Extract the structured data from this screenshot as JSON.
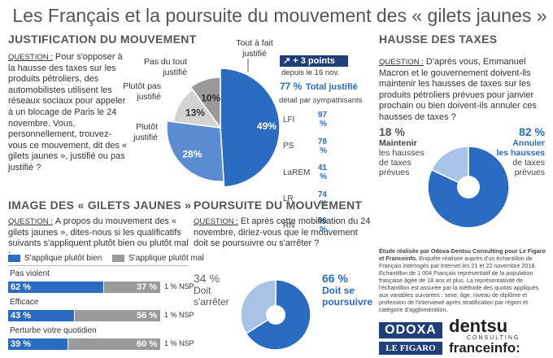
{
  "title": "Les Français et la poursuite du mouvement des « gilets jaunes »",
  "justification": {
    "heading": "JUSTIFICATION DU MOUVEMENT",
    "question_label": "QUESTION :",
    "question_text": "Pour s'opposer à la hausse des taxes sur les produits pétroliers, des automobilistes utilisent les réseaux sociaux pour appeler à un blocage de Paris le 24 novembre. Vous, personnellement, trouvez-vous ce mouvement, dit des « gilets jaunes », justifié ou pas justifié ?",
    "slice_labels": {
      "tout_a_fait": "Tout à fait justifié",
      "plutot": "Plutôt justifié",
      "plutot_pas": "Plutôt pas justifié",
      "pas_du_tout": "Pas du tout justifié"
    },
    "trend": "+ 3 points",
    "trend_since": "depuis le 16 nov.",
    "total_value": "77 %",
    "total_label": "Total justifié",
    "detail_title": "détail par sympathisants",
    "sympathisants": [
      {
        "party": "LFI",
        "value": "97 %"
      },
      {
        "party": "PS",
        "value": "78 %"
      },
      {
        "party": "LaREM",
        "value": "41 %"
      },
      {
        "party": "LR",
        "value": "74 %"
      },
      {
        "party": "RN",
        "value": "86 %"
      }
    ]
  },
  "taxes": {
    "heading": "HAUSSE DES TAXES",
    "question_label": "QUESTION :",
    "question_text": "D'après vous, Emmanuel Macron et le gouvernement doivent-ils maintenir les hausses de taxes sur les produits pétroliers prévues pour janvier prochain ou bien doivent-ils annuler ces hausses de taxes ?",
    "left_value": "18 %",
    "left_l1": "Maintenir",
    "left_l2": "les hausses",
    "left_l3": "de taxes",
    "left_l4": "prévues",
    "right_value": "82 %",
    "right_l1": "Annuler",
    "right_l2": "les hausses",
    "right_l3": "de taxes",
    "right_l4": "prévues"
  },
  "image": {
    "heading": "IMAGE DES « GILETS JAUNES »",
    "question_label": "QUESTION :",
    "question_text": "A propos du mouvement des « gilets jaunes », dites-nous si les qualificatifs suivants s'appliquent plutôt bien ou plutôt mal :",
    "legend_bien": "S'applique plutôt bien",
    "legend_mal": "S'applique plutôt mal"
  },
  "poursuite": {
    "heading": "POURSUITE DU MOUVEMENT",
    "question_label": "QUESTION :",
    "question_text": "Et après cette mobilisation du 24 novembre, diriez-vous que le mouvement doit se poursuivre ou s'arrêter ?",
    "left_value": "34 %",
    "left_l1": "Doit",
    "left_l2": "s'arrêter",
    "right_value": "66 %",
    "right_l1": "Doit se",
    "right_l2": "poursuivre"
  },
  "methodology": {
    "lead": "Étude réalisée par Odoxa-Dentsu Consulting pour Le Figaro et Franceinfo.",
    "body": "Enquête réalisée auprès d'un échantillon de Français interrogés par Internet les 21 et 22 novembre 2018. Echantillon de 1 004 Français représentatif de la population française âgée de 18 ans et plus. La représentativité de l'échantillon est assurée par la méthode des quotas appliqués aux variables suivantes : sexe, âge, niveau de diplôme et profession de l'interviewé après stratification par région et catégorie d'agglomération."
  },
  "logos": {
    "odoxa": "ODOXA",
    "dentsu": "dentsu",
    "dentsu_sub": "CONSULTING",
    "figaro": "LE FIGARO",
    "franceinfo": "franceinfo:"
  },
  "colors": {
    "blue": "#2a6cc2",
    "mid_blue": "#5b8bd0",
    "light_blue": "#a9c3e6",
    "grey": "#9a9a9a",
    "light_grey": "#d3d3d3"
  },
  "chart_data": [
    {
      "type": "pie",
      "title": "Justification du mouvement",
      "labels": [
        "Tout à fait justifié",
        "Plutôt justifié",
        "Plutôt pas justifié",
        "Pas du tout justifié"
      ],
      "values": [
        49,
        28,
        13,
        10
      ],
      "value_labels": [
        "49%",
        "28%",
        "13%",
        "10%"
      ]
    },
    {
      "type": "pie",
      "title": "Hausse des taxes",
      "labels": [
        "Maintenir les hausses de taxes prévues",
        "Annuler les hausses de taxes prévues"
      ],
      "values": [
        18,
        82
      ]
    },
    {
      "type": "bar",
      "title": "Image des « gilets jaunes »",
      "categories": [
        "Pas violent",
        "Efficace",
        "Perturbe votre quotidien"
      ],
      "series": [
        {
          "name": "S'applique plutôt bien",
          "values": [
            62,
            43,
            39
          ],
          "labels": [
            "62 %",
            "43 %",
            "39 %"
          ]
        },
        {
          "name": "S'applique plutôt mal",
          "values": [
            37,
            56,
            60
          ],
          "labels": [
            "37 %",
            "56 %",
            "60 %"
          ]
        },
        {
          "name": "NSP",
          "values": [
            1,
            1,
            1
          ],
          "labels": [
            "1 % NSP",
            "1 % NSP",
            "1 % NSP"
          ]
        }
      ]
    },
    {
      "type": "pie",
      "title": "Poursuite du mouvement",
      "labels": [
        "Doit s'arrêter",
        "Doit se poursuivre"
      ],
      "values": [
        34,
        66
      ]
    }
  ]
}
